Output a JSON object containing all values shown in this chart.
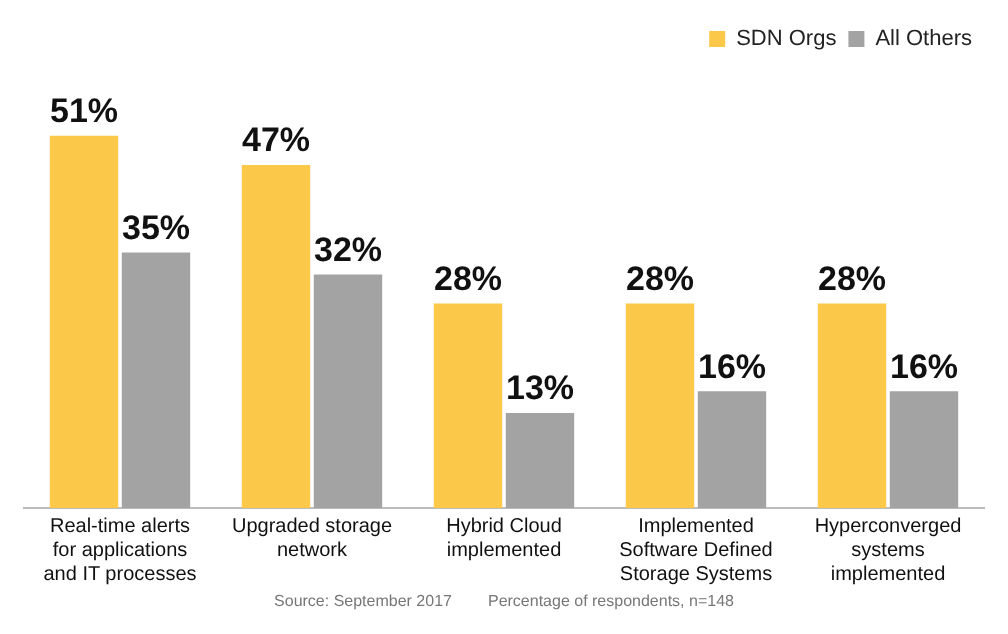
{
  "chart_data": {
    "type": "bar",
    "categories": [
      "Real-time alerts for applications and IT processes",
      "Upgraded storage network",
      "Hybrid Cloud implemented",
      "Implemented Software Defined Storage Systems",
      "Hyperconverged systems implemented"
    ],
    "series": [
      {
        "name": "SDN Orgs",
        "color": "#fcc84a",
        "values": [
          51,
          47,
          28,
          28,
          28
        ],
        "value_labels": [
          "51%",
          "47%",
          "28%",
          "28%",
          "28%"
        ]
      },
      {
        "name": "All Others",
        "color": "#a3a3a3",
        "values": [
          35,
          32,
          13,
          16,
          16
        ],
        "value_labels": [
          "35%",
          "32%",
          "13%",
          "16%",
          "16%"
        ]
      }
    ],
    "legend": "top",
    "grid": false,
    "tick_labels": "x",
    "annotations": [
      "Source: September 2017",
      "Percentage of respondents, n=148"
    ]
  }
}
